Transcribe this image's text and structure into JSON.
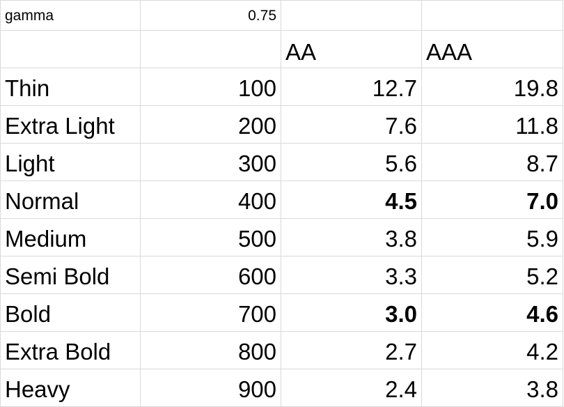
{
  "sheet": {
    "gamma_label": "gamma",
    "gamma_value": "0.75",
    "headers": [
      "",
      "",
      "AA",
      "AAA"
    ],
    "rows": [
      {
        "name": "Thin",
        "weight": "100",
        "aa": "12.7",
        "aaa": "19.8",
        "aa_bold": false,
        "aaa_bold": false
      },
      {
        "name": "Extra Light",
        "weight": "200",
        "aa": "7.6",
        "aaa": "11.8",
        "aa_bold": false,
        "aaa_bold": false
      },
      {
        "name": "Light",
        "weight": "300",
        "aa": "5.6",
        "aaa": "8.7",
        "aa_bold": false,
        "aaa_bold": false
      },
      {
        "name": "Normal",
        "weight": "400",
        "aa": "4.5",
        "aaa": "7.0",
        "aa_bold": true,
        "aaa_bold": true
      },
      {
        "name": "Medium",
        "weight": "500",
        "aa": "3.8",
        "aaa": "5.9",
        "aa_bold": false,
        "aaa_bold": false
      },
      {
        "name": "Semi Bold",
        "weight": "600",
        "aa": "3.3",
        "aaa": "5.2",
        "aa_bold": false,
        "aaa_bold": false
      },
      {
        "name": "Bold",
        "weight": "700",
        "aa": "3.0",
        "aaa": "4.6",
        "aa_bold": true,
        "aaa_bold": true
      },
      {
        "name": "Extra Bold",
        "weight": "800",
        "aa": "2.7",
        "aaa": "4.2",
        "aa_bold": false,
        "aaa_bold": false
      },
      {
        "name": "Heavy",
        "weight": "900",
        "aa": "2.4",
        "aaa": "3.8",
        "aa_bold": false,
        "aaa_bold": false
      }
    ]
  },
  "colors": {
    "gridline": "#d9d9d9",
    "text": "#000000",
    "background": "#ffffff"
  }
}
